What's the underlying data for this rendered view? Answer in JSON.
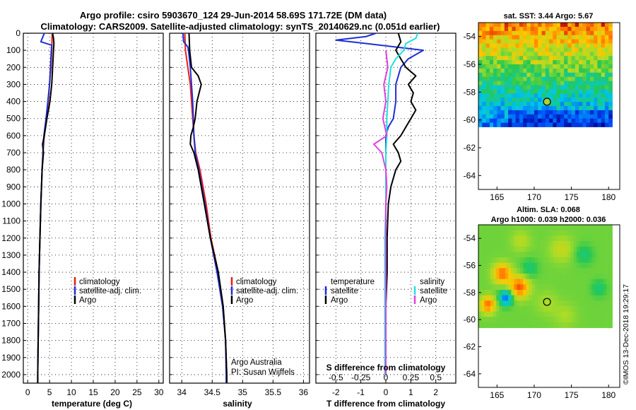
{
  "title_line1": "Argo profile: csiro 5903670_124 29-Jun-2014 58.69S 171.72E (DM data)",
  "title_line2": "Climatology: CARS2009. Satellite-adjusted climatology: synTS_20140629.nc (0.051d earlier)",
  "colors": {
    "climatology": "#e81c1c",
    "satellite": "#1d2fd6",
    "argo": "#000000",
    "salinity_satellite": "#1fe0e0",
    "salinity_argo": "#e040e0"
  },
  "legend": {
    "climatology": "climatology",
    "satellite_adj": "satellite-adj. clim.",
    "argo": "Argo",
    "temperature": "temperature",
    "salinity": "salinity",
    "satellite": "satellite"
  },
  "credit_line1": "Argo Australia",
  "credit_line2": "PI: Susan Wijffels",
  "diff_top_label": "S difference from climatology",
  "stamp": "©IMOS 13-Dec-2018 19:29:17",
  "sst_map_title": "sat. SST: 3.44 Argo: 5.67",
  "sla_title_line1": "Altim. SLA: 0.068",
  "sla_title_line2": "Argo h1000: 0.039 h2000: 0.036",
  "chart_data": [
    {
      "type": "line",
      "xlabel": "temperature (deg C)",
      "ylabel": "",
      "xlim": [
        -1,
        31
      ],
      "ylim": [
        2050,
        0
      ],
      "x_ticks": [
        "0",
        "5",
        "10",
        "15",
        "20",
        "25",
        "30"
      ],
      "y_ticks": [
        "0",
        "100",
        "200",
        "300",
        "400",
        "500",
        "600",
        "700",
        "800",
        "900",
        "1000",
        "1100",
        "1200",
        "1300",
        "1400",
        "1500",
        "1600",
        "1700",
        "1800",
        "1900",
        "2000"
      ],
      "series": [
        {
          "name": "climatology",
          "depth": [
            0,
            100,
            200,
            300,
            400,
            500,
            600,
            700,
            800,
            1000,
            1200,
            1400,
            1600,
            1800,
            2000,
            2050
          ],
          "values": [
            5.6,
            5.5,
            5.3,
            5.0,
            4.7,
            4.2,
            3.8,
            3.5,
            3.3,
            3.0,
            2.8,
            2.6,
            2.5,
            2.4,
            2.3,
            2.3
          ]
        },
        {
          "name": "satellite-adj. clim.",
          "depth": [
            0,
            20,
            50,
            70,
            100,
            200,
            300,
            400,
            500,
            600,
            700,
            800,
            1000,
            1200,
            1400,
            1600,
            1800,
            2000,
            2050
          ],
          "values": [
            3.8,
            3.5,
            3.0,
            5.5,
            5.4,
            5.2,
            5.0,
            4.6,
            4.2,
            3.7,
            3.5,
            3.3,
            3.0,
            2.8,
            2.6,
            2.5,
            2.4,
            2.3,
            2.3
          ]
        },
        {
          "name": "Argo",
          "depth": [
            0,
            30,
            60,
            100,
            200,
            300,
            400,
            500,
            600,
            650,
            700,
            800,
            1000,
            1200,
            1400,
            1600,
            1800,
            2000,
            2050
          ],
          "values": [
            5.7,
            5.9,
            6.0,
            5.9,
            5.7,
            5.5,
            5.1,
            4.4,
            3.8,
            3.4,
            3.6,
            3.3,
            3.0,
            2.8,
            2.6,
            2.5,
            2.4,
            2.3,
            2.3
          ]
        }
      ]
    },
    {
      "type": "line",
      "xlabel": "salinity",
      "ylabel": "",
      "xlim": [
        33.8,
        36.1
      ],
      "ylim": [
        2050,
        0
      ],
      "x_ticks": [
        "34",
        "34.5",
        "35",
        "35.5",
        "36"
      ],
      "series": [
        {
          "name": "climatology",
          "depth": [
            0,
            100,
            200,
            300,
            400,
            500,
            600,
            700,
            800,
            1000,
            1200,
            1400,
            1600,
            1800,
            2000,
            2050
          ],
          "values": [
            34.05,
            34.06,
            34.1,
            34.14,
            34.16,
            34.18,
            34.2,
            34.23,
            34.3,
            34.4,
            34.48,
            34.6,
            34.68,
            34.72,
            34.74,
            34.74
          ]
        },
        {
          "name": "satellite-adj. clim.",
          "depth": [
            0,
            50,
            80,
            100,
            200,
            300,
            400,
            500,
            600,
            700,
            800,
            1000,
            1200,
            1400,
            1600,
            1800,
            2000,
            2050
          ],
          "values": [
            34.02,
            34.03,
            34.1,
            34.11,
            34.14,
            34.16,
            34.18,
            34.19,
            34.2,
            34.22,
            34.28,
            34.38,
            34.47,
            34.58,
            34.67,
            34.72,
            34.73,
            34.73
          ]
        },
        {
          "name": "Argo",
          "depth": [
            0,
            100,
            200,
            250,
            300,
            400,
            500,
            550,
            600,
            650,
            700,
            800,
            1000,
            1200,
            1400,
            1600,
            1800,
            2000,
            2050
          ],
          "values": [
            34.12,
            34.13,
            34.16,
            34.27,
            34.32,
            34.25,
            34.22,
            34.19,
            34.15,
            34.14,
            34.2,
            34.27,
            34.37,
            34.47,
            34.6,
            34.68,
            34.72,
            34.74,
            34.74
          ]
        }
      ]
    },
    {
      "type": "line",
      "xlabel": "T difference from climatology",
      "x2label": "S difference from climatology",
      "ylabel": "",
      "xlim": [
        -2.8,
        2.8
      ],
      "ylim": [
        2050,
        0
      ],
      "x_ticks": [
        "-2",
        "-1",
        "0",
        "1",
        "2"
      ],
      "x2_ticks": [
        "-0.5",
        "-0.25",
        "0",
        "0.25",
        "0.5"
      ],
      "series": [
        {
          "name": "temperature satellite",
          "depth": [
            0,
            20,
            40,
            60,
            100,
            150,
            200,
            300,
            400,
            500,
            550,
            600,
            700,
            800,
            1000,
            1200,
            1400,
            1600,
            1800,
            2000
          ],
          "values": [
            -0.4,
            -0.8,
            -2.0,
            -0.8,
            1.5,
            0.9,
            0.6,
            0.4,
            0.4,
            0.3,
            0.1,
            0.0,
            0.0,
            0.0,
            0.0,
            0.0,
            0.0,
            0.0,
            0.0,
            0.0
          ]
        },
        {
          "name": "temperature Argo",
          "depth": [
            0,
            50,
            100,
            150,
            200,
            250,
            300,
            350,
            400,
            450,
            500,
            550,
            600,
            650,
            700,
            750,
            800,
            850,
            900,
            1000,
            1200,
            1400,
            1600,
            1800,
            2000
          ],
          "values": [
            0.5,
            0.6,
            0.4,
            0.6,
            0.8,
            1.2,
            0.9,
            1.1,
            1.0,
            1.2,
            1.0,
            0.8,
            0.6,
            0.3,
            0.5,
            0.6,
            0.4,
            0.3,
            0.2,
            0.1,
            0.05,
            0.05,
            0.0,
            0.0,
            0.0
          ]
        },
        {
          "name": "salinity satellite",
          "s_values": [
            0.32,
            0.3,
            0.2,
            0.18,
            0.1,
            0.05,
            0.03,
            0.02,
            0.01,
            0.01,
            0.0,
            0.0,
            0.0,
            0.0,
            -0.01,
            -0.01,
            -0.01,
            -0.01,
            -0.01,
            -0.01
          ],
          "depth": [
            0,
            30,
            60,
            100,
            150,
            200,
            300,
            400,
            500,
            600,
            700,
            800,
            900,
            1000,
            1200,
            1400,
            1600,
            1800,
            1900,
            2000
          ]
        },
        {
          "name": "salinity Argo",
          "s_values": [
            0.0,
            0.02,
            -0.02,
            0.0,
            -0.03,
            0.01,
            -0.12,
            -0.04,
            0.0,
            0.01,
            0.0,
            0.0,
            0.0,
            0.0,
            0.0,
            0.0,
            0.0,
            0.0
          ],
          "depth": [
            100,
            200,
            300,
            400,
            500,
            600,
            650,
            700,
            800,
            900,
            1000,
            1200,
            1400,
            1600,
            1700,
            1800,
            1900,
            2000
          ]
        }
      ]
    },
    {
      "type": "heatmap",
      "title": "sat. SST: 3.44 Argo: 5.67",
      "x_ticks": [
        "165",
        "170",
        "175",
        "180"
      ],
      "y_ticks": [
        "-54",
        "-56",
        "-58",
        "-60",
        "-62",
        "-64"
      ],
      "xlim": [
        162.5,
        181.5
      ],
      "ylim": [
        -65,
        -53
      ],
      "data_extent": {
        "lon": [
          162.5,
          180.5
        ],
        "lat": [
          -60.2,
          -53
        ]
      },
      "marker": {
        "lon": 171.72,
        "lat": -58.69
      }
    },
    {
      "type": "heatmap",
      "title": "Altim. SLA: 0.068 / Argo h1000: 0.039 h2000: 0.036",
      "x_ticks": [
        "165",
        "170",
        "175",
        "180"
      ],
      "y_ticks": [
        "-54",
        "-56",
        "-58",
        "-60",
        "-62",
        "-64"
      ],
      "xlim": [
        162.5,
        181.5
      ],
      "ylim": [
        -65,
        -53
      ],
      "data_extent": {
        "lon": [
          162.5,
          180.5
        ],
        "lat": [
          -60.2,
          -53
        ]
      },
      "marker": {
        "lon": 171.72,
        "lat": -58.69
      }
    }
  ]
}
